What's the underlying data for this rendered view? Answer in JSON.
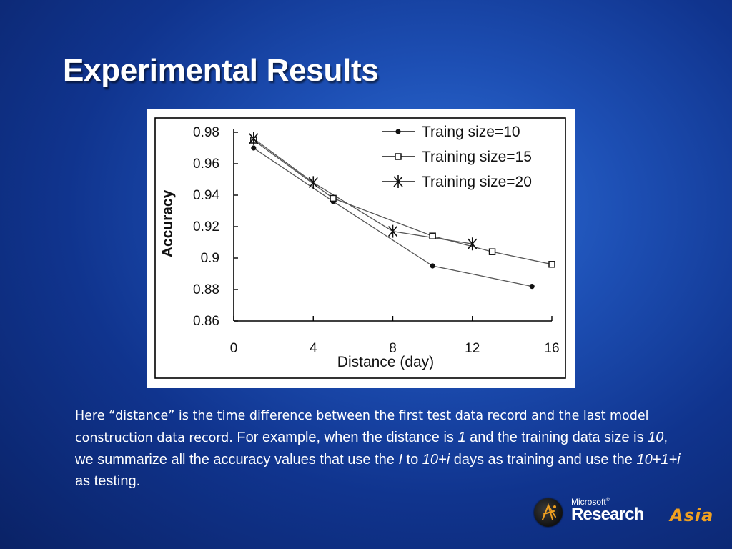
{
  "slide": {
    "title": "Experimental Results",
    "body": {
      "p1": "Here “distance” is the time difference between the first test data record and the last model construction data record.",
      "p2": " For example, when the distance is ",
      "v1": "1",
      "p3": " and the training data size is ",
      "v2": "10",
      "p4": ", we summarize all the accuracy values that use the ",
      "v3": "I",
      "p5": " to ",
      "v4": "10+i",
      "p6": " days as training and use the ",
      "v5": "10+1+i",
      "p7": " as testing."
    },
    "logo": {
      "microsoft": "Microsoft",
      "reg": "®",
      "research": "Research",
      "asia": "Asia"
    }
  },
  "chart_data": {
    "type": "line",
    "xlabel": "Distance (day)",
    "ylabel": "Accuracy",
    "xlim": [
      0,
      16
    ],
    "ylim": [
      0.86,
      0.98
    ],
    "xticks": [
      0,
      4,
      8,
      12,
      16
    ],
    "yticks": [
      0.86,
      0.88,
      0.9,
      0.92,
      0.94,
      0.96,
      0.98
    ],
    "ytick_labels": [
      "0.86",
      "0.88",
      "0.9",
      "0.92",
      "0.94",
      "0.96",
      "0.98"
    ],
    "grid": false,
    "legend_position": "top-right",
    "series": [
      {
        "name": "Traing size=10",
        "marker": "dot",
        "x": [
          1,
          5,
          10,
          15
        ],
        "y": [
          0.97,
          0.936,
          0.895,
          0.882
        ]
      },
      {
        "name": "Training size=15",
        "marker": "square",
        "x": [
          1,
          5,
          10,
          13,
          16
        ],
        "y": [
          0.975,
          0.938,
          0.914,
          0.904,
          0.896
        ]
      },
      {
        "name": "Training size=20",
        "marker": "asterisk",
        "x": [
          1,
          4,
          8,
          12
        ],
        "y": [
          0.976,
          0.948,
          0.917,
          0.909
        ]
      }
    ]
  },
  "colors": {
    "line": "#555555",
    "axis": "#000000",
    "text": "#111111"
  }
}
